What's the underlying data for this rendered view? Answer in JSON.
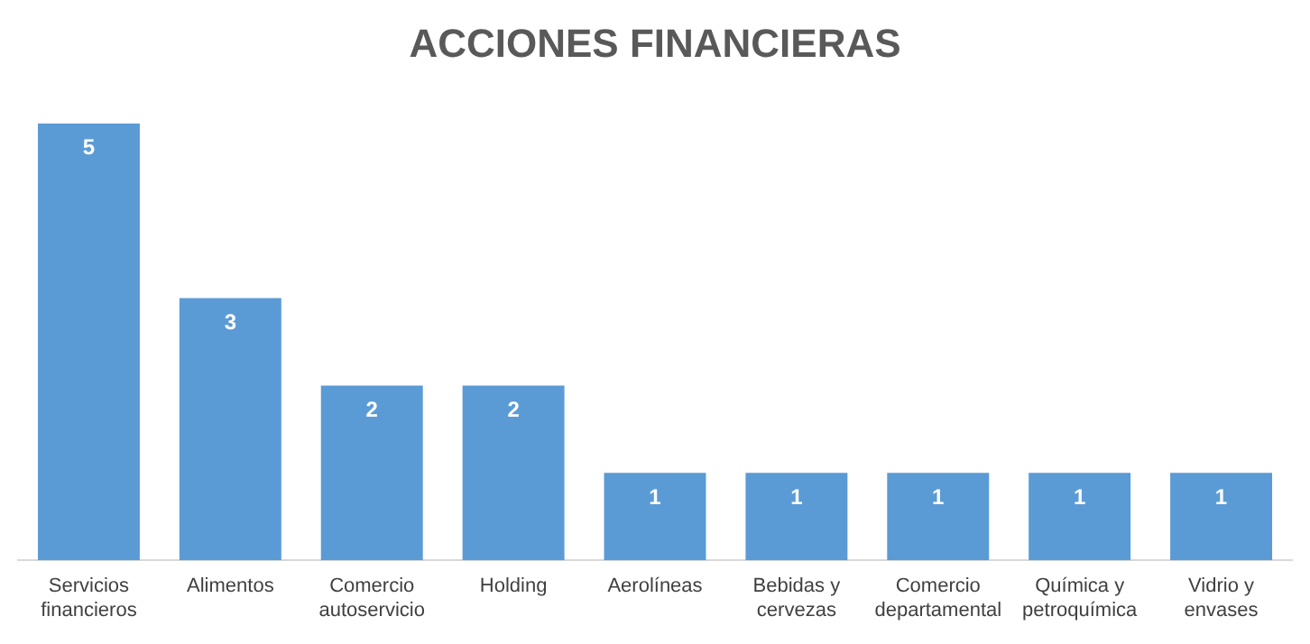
{
  "chart_data": {
    "type": "bar",
    "title": "ACCIONES FINANCIERAS",
    "categories": [
      "Servicios financieros",
      "Alimentos",
      "Comercio autoservicio",
      "Holding",
      "Aerolíneas",
      "Bebidas y cervezas",
      "Comercio departamental",
      "Química y petroquímica",
      "Vidrio y envases"
    ],
    "values": [
      5,
      3,
      2,
      2,
      1,
      1,
      1,
      1,
      1
    ],
    "color": "#5b9bd5",
    "data_labels": true,
    "grid": false,
    "legend": false
  }
}
